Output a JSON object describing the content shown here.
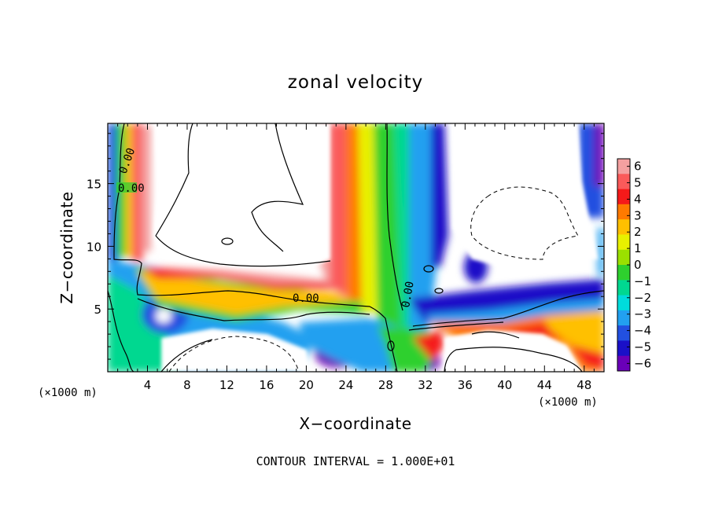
{
  "chart_data": {
    "type": "heatmap",
    "title": "zonal velocity",
    "xlabel": "X−coordinate",
    "ylabel": "Z−coordinate",
    "x_unit_label": "(×1000 m)",
    "x_unit_label_right": "(×1000 m)",
    "xlim": [
      0,
      50
    ],
    "ylim": [
      0,
      19.8
    ],
    "x_ticks": [
      4,
      8,
      12,
      16,
      20,
      24,
      28,
      32,
      36,
      40,
      44,
      48
    ],
    "x_tick_labels": [
      "4",
      "8",
      "12",
      "16",
      "20",
      "24",
      "28",
      "32",
      "36",
      "40",
      "44",
      "48"
    ],
    "y_ticks": [
      5,
      10,
      15
    ],
    "y_tick_labels": [
      "5",
      "10",
      "15"
    ],
    "colorbar": {
      "min": -6,
      "max": 6,
      "ticks": [
        6,
        5,
        4,
        3,
        2,
        1,
        0,
        -1,
        -2,
        -3,
        -4,
        -5,
        -6
      ],
      "tick_labels": [
        "6",
        "5",
        "4",
        "3",
        "2",
        "1",
        "0",
        "−1",
        "−2",
        "−3",
        "−4",
        "−5",
        "−6"
      ],
      "colors": [
        "#f4a0a0",
        "#fa5a5a",
        "#f51a1a",
        "#ff7a00",
        "#ffc000",
        "#e8f000",
        "#9be000",
        "#2ed02e",
        "#00d890",
        "#00dcdc",
        "#22a0f0",
        "#2250e0",
        "#1a10c8",
        "#6a00b8"
      ]
    },
    "contour_labels": [
      "0.00",
      "0.00",
      "0.00",
      "0.00"
    ],
    "annotation": "CONTOUR INTERVAL = 1.000E+01"
  }
}
